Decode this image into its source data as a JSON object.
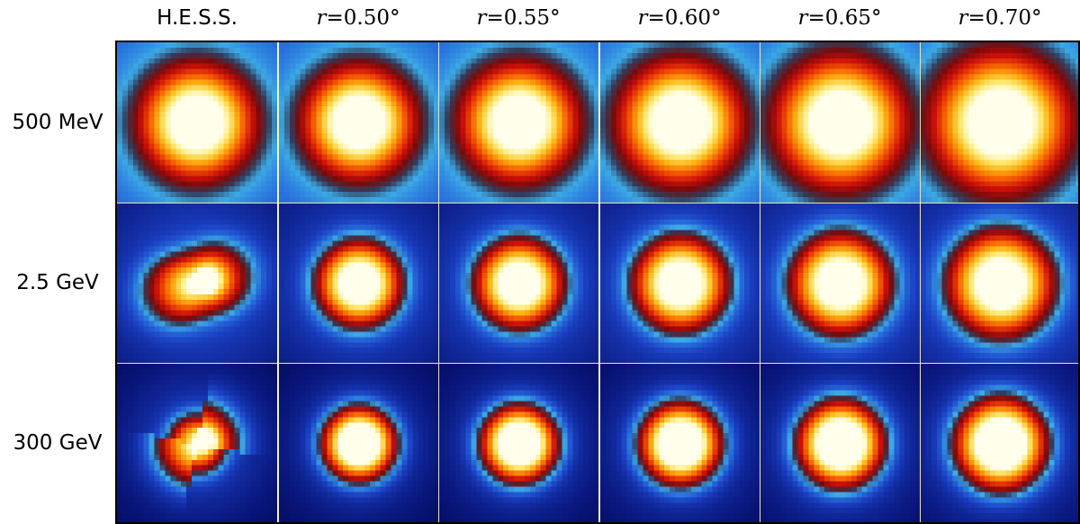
{
  "columns": [
    {
      "label": "H.E.S.S.",
      "type": "text"
    },
    {
      "prefix": "r",
      "label": "=0.50°",
      "type": "math"
    },
    {
      "prefix": "r",
      "label": "=0.55°",
      "type": "math"
    },
    {
      "prefix": "r",
      "label": "=0.60°",
      "type": "math"
    },
    {
      "prefix": "r",
      "label": "=0.65°",
      "type": "math"
    },
    {
      "prefix": "r",
      "label": "=0.70°",
      "type": "math"
    }
  ],
  "rows": [
    {
      "label": "500 MeV"
    },
    {
      "label": "2.5 GeV"
    },
    {
      "label": "300 GeV"
    }
  ],
  "colors": {
    "background_dark": "#00003c",
    "background_mid": "#1a3ec0",
    "ring_cyan": "#3aa0e0",
    "core_red": "#d01010",
    "core_orange": "#ff8a00",
    "core_white": "#ffffe0",
    "grid_line": "#e8e6b8"
  },
  "colormap": "cubehelix-like blue-to-hot"
}
